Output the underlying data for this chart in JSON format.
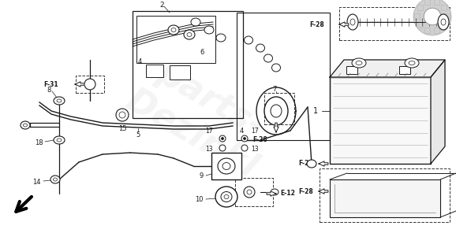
{
  "bg_color": "#ffffff",
  "lc": "#1a1a1a",
  "figsize": [
    5.78,
    2.96
  ],
  "dpi": 100,
  "xlim": [
    0,
    578
  ],
  "ylim": [
    0,
    296
  ]
}
